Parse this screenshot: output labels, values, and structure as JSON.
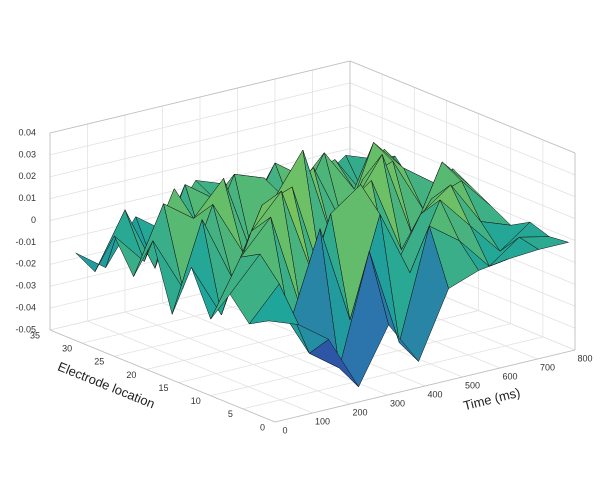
{
  "chart_data": {
    "type": "surface",
    "xlabel": "Time (ms)",
    "ylabel": "Electrode location",
    "x": [
      0,
      80,
      160,
      240,
      320,
      400,
      480,
      560,
      640,
      720,
      800
    ],
    "y": [
      1,
      4,
      7,
      10,
      13,
      16,
      19,
      22,
      25,
      28,
      31
    ],
    "z": [
      [
        -0.005,
        -0.01,
        -0.02,
        -0.045,
        -0.02,
        -0.04,
        -0.01,
        -0.005,
        -0.003,
        -0.002,
        -0.002
      ],
      [
        -0.01,
        0.005,
        -0.03,
        -0.04,
        0.01,
        -0.035,
        0.015,
        0.005,
        -0.01,
        0.0,
        -0.003
      ],
      [
        0.0,
        0.015,
        -0.02,
        0.02,
        -0.025,
        0.02,
        -0.01,
        0.02,
        0.005,
        -0.01,
        0.0
      ],
      [
        -0.015,
        0.01,
        0.025,
        -0.02,
        0.02,
        0.03,
        -0.015,
        0.01,
        0.02,
        0.0,
        -0.005
      ],
      [
        0.005,
        -0.02,
        0.015,
        0.03,
        -0.01,
        0.015,
        0.025,
        -0.01,
        0.01,
        0.015,
        0.0
      ],
      [
        -0.02,
        0.02,
        -0.01,
        0.02,
        0.025,
        -0.02,
        0.01,
        0.03,
        -0.01,
        0.02,
        0.005
      ],
      [
        0.01,
        -0.015,
        0.02,
        -0.005,
        0.015,
        0.035,
        -0.01,
        0.015,
        0.02,
        -0.005,
        0.01
      ],
      [
        -0.01,
        0.02,
        0.01,
        0.025,
        -0.015,
        0.01,
        0.02,
        -0.01,
        0.025,
        0.01,
        0.0
      ],
      [
        0.005,
        -0.01,
        0.02,
        -0.01,
        0.02,
        0.015,
        -0.005,
        0.02,
        0.0,
        0.015,
        -0.005
      ],
      [
        -0.015,
        0.01,
        -0.02,
        0.015,
        0.005,
        -0.01,
        0.015,
        0.005,
        0.01,
        -0.01,
        0.005
      ],
      [
        -0.01,
        -0.02,
        0.0,
        -0.01,
        0.01,
        0.005,
        -0.005,
        0.0,
        -0.005,
        0.005,
        0.0
      ]
    ],
    "xlim": [
      0,
      800
    ],
    "xticks": [
      0,
      100,
      200,
      300,
      400,
      500,
      600,
      700,
      800
    ],
    "ylim": [
      0,
      35
    ],
    "yticks": [
      0,
      5,
      10,
      15,
      20,
      25,
      30,
      35
    ],
    "zlim": [
      -0.05,
      0.04
    ],
    "zticks": [
      -0.05,
      -0.04,
      -0.03,
      -0.02,
      -0.01,
      0,
      0.01,
      0.02,
      0.03,
      0.04
    ],
    "grid": true,
    "colormap": [
      "#2c1e8c",
      "#2f6bb0",
      "#1fa59a",
      "#7cc55a",
      "#f2d13a"
    ]
  }
}
